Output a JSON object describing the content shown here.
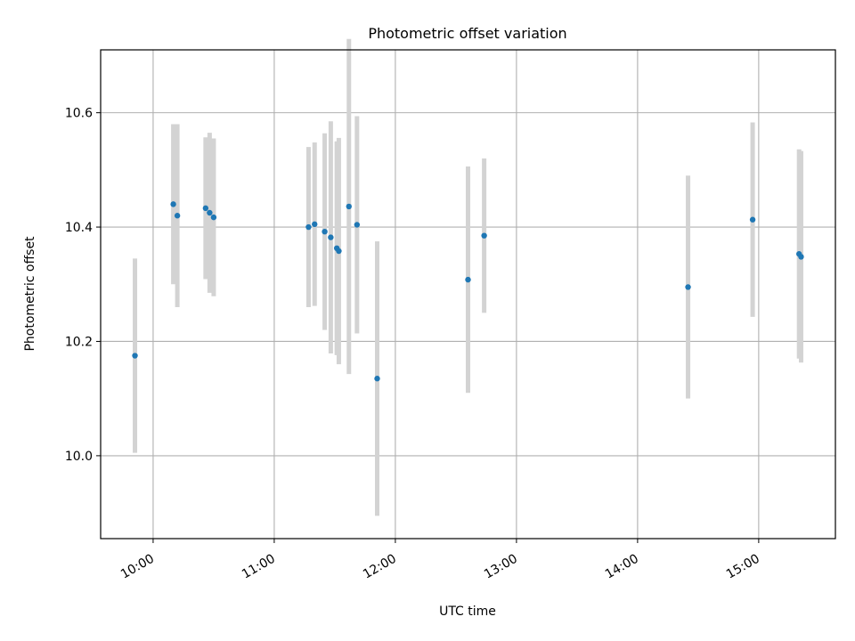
{
  "chart_data": {
    "type": "scatter",
    "title": "Photometric offset variation",
    "xlabel": "UTC time",
    "ylabel": "Photometric offset",
    "x_ticks": [
      "10:00",
      "11:00",
      "12:00",
      "13:00",
      "14:00",
      "15:00"
    ],
    "y_ticks": [
      "10.0",
      "10.2",
      "10.4",
      "10.6"
    ],
    "xlim": [
      "09:34",
      "15:38"
    ],
    "ylim": [
      9.855,
      10.71
    ],
    "grid": true,
    "marker_color": "#1f77b4",
    "errorbar_color": "#d3d3d3",
    "points": [
      {
        "t": "09:51",
        "y": 10.175,
        "err": 0.17
      },
      {
        "t": "10:10",
        "y": 10.44,
        "err": 0.14
      },
      {
        "t": "10:12",
        "y": 10.42,
        "err": 0.16
      },
      {
        "t": "10:26",
        "y": 10.433,
        "err": 0.124
      },
      {
        "t": "10:28",
        "y": 10.425,
        "err": 0.14
      },
      {
        "t": "10:30",
        "y": 10.417,
        "err": 0.138
      },
      {
        "t": "11:17",
        "y": 10.4,
        "err": 0.14
      },
      {
        "t": "11:20",
        "y": 10.405,
        "err": 0.143
      },
      {
        "t": "11:25",
        "y": 10.392,
        "err": 0.172
      },
      {
        "t": "11:28",
        "y": 10.382,
        "err": 0.203
      },
      {
        "t": "11:31",
        "y": 10.363,
        "err": 0.187
      },
      {
        "t": "11:32",
        "y": 10.358,
        "err": 0.198
      },
      {
        "t": "11:37",
        "y": 10.436,
        "err": 0.293
      },
      {
        "t": "11:41",
        "y": 10.404,
        "err": 0.19
      },
      {
        "t": "11:51",
        "y": 10.135,
        "err": 0.24
      },
      {
        "t": "12:36",
        "y": 10.308,
        "err": 0.198
      },
      {
        "t": "12:44",
        "y": 10.385,
        "err": 0.135
      },
      {
        "t": "14:25",
        "y": 10.295,
        "err": 0.195
      },
      {
        "t": "14:57",
        "y": 10.413,
        "err": 0.17
      },
      {
        "t": "15:20",
        "y": 10.353,
        "err": 0.183
      },
      {
        "t": "15:21",
        "y": 10.348,
        "err": 0.185
      }
    ]
  }
}
